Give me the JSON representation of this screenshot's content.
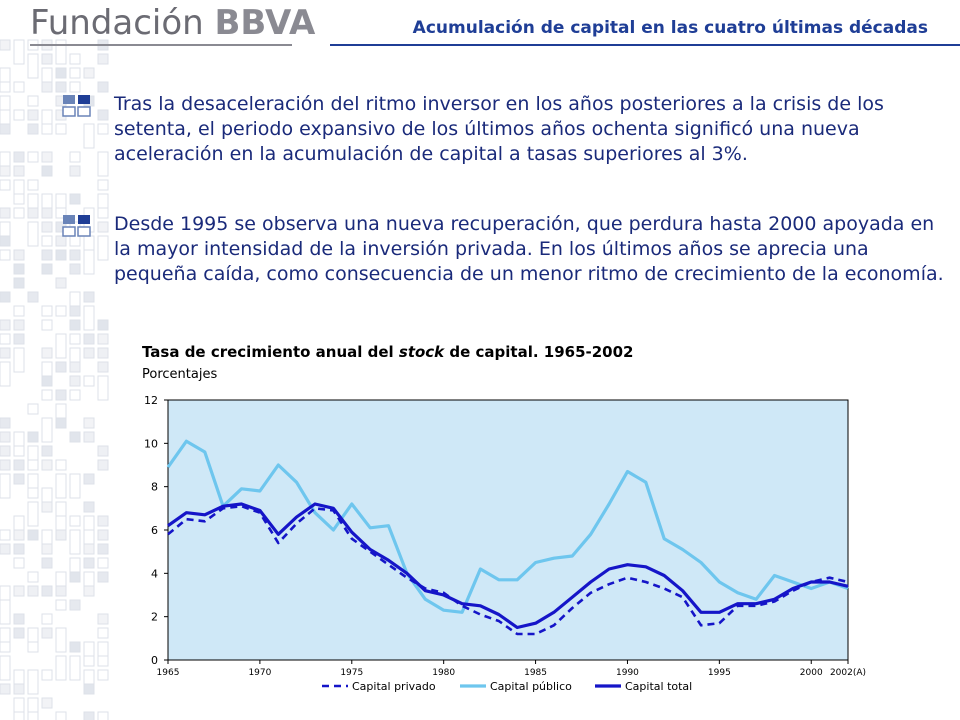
{
  "header": {
    "logo_text": "Fundación",
    "logo_brand": "BBVA",
    "title": "Acumulación de capital en las cuatro últimas décadas"
  },
  "bullets": [
    {
      "icon": "grid-bullet-icon",
      "text": "Tras la desaceleración del ritmo inversor en los años posteriores a la crisis de los setenta, el periodo expansivo de los últimos años ochenta significó una nueva aceleración en la acumulación de capital a tasas superiores al 3%."
    },
    {
      "icon": "grid-bullet-icon",
      "text": "Desde 1995 se observa una nueva recuperación, que perdura hasta 2000 apoyada en la mayor intensidad de la inversión privada. En los últimos años se aprecia una pequeña caída, como consecuencia de un menor ritmo de crecimiento de la economía."
    }
  ],
  "colors": {
    "title_blue": "#1f3e96",
    "text_blue": "#1a2a7a",
    "plot_bg": "#cfe8f7",
    "public_line": "#6ec6ee",
    "total_line": "#1515c8",
    "private_line": "#1515c8"
  },
  "chart_data": {
    "type": "line",
    "title_part1": "Tasa de crecimiento anual del ",
    "title_italic": "stock",
    "title_part2": " de capital. 1965-2002",
    "subtitle": "Porcentajes",
    "ylim": [
      0,
      12
    ],
    "yticks": [
      "0",
      "2",
      "4",
      "6",
      "8",
      "10",
      "12"
    ],
    "xlim": [
      1965,
      2002
    ],
    "xticks": [
      {
        "year": 1965,
        "label": "1965"
      },
      {
        "year": 1970,
        "label": "1970"
      },
      {
        "year": 1975,
        "label": "1975"
      },
      {
        "year": 1980,
        "label": "1980"
      },
      {
        "year": 1985,
        "label": "1985"
      },
      {
        "year": 1990,
        "label": "1990"
      },
      {
        "year": 1995,
        "label": "1995"
      },
      {
        "year": 2000,
        "label": "2000"
      },
      {
        "year": 2002,
        "label": "2002(A)"
      }
    ],
    "x": [
      1965,
      1966,
      1967,
      1968,
      1969,
      1970,
      1971,
      1972,
      1973,
      1974,
      1975,
      1976,
      1977,
      1978,
      1979,
      1980,
      1981,
      1982,
      1983,
      1984,
      1985,
      1986,
      1987,
      1988,
      1989,
      1990,
      1991,
      1992,
      1993,
      1994,
      1995,
      1996,
      1997,
      1998,
      1999,
      2000,
      2001,
      2002
    ],
    "series": [
      {
        "name": "Capital privado",
        "style": "dashed",
        "values": [
          5.8,
          6.5,
          6.4,
          7.0,
          7.1,
          6.8,
          5.4,
          6.3,
          7.0,
          6.9,
          5.6,
          5.0,
          4.4,
          3.8,
          3.3,
          3.1,
          2.5,
          2.1,
          1.8,
          1.2,
          1.2,
          1.6,
          2.4,
          3.1,
          3.5,
          3.8,
          3.6,
          3.3,
          2.9,
          1.6,
          1.7,
          2.5,
          2.5,
          2.7,
          3.2,
          3.6,
          3.8,
          3.6
        ]
      },
      {
        "name": "Capital público",
        "style": "light",
        "values": [
          8.9,
          10.1,
          9.6,
          7.1,
          7.9,
          7.8,
          9.0,
          8.2,
          6.8,
          6.0,
          7.2,
          6.1,
          6.2,
          4.0,
          2.8,
          2.3,
          2.2,
          4.2,
          3.7,
          3.7,
          4.5,
          4.7,
          4.8,
          5.8,
          7.2,
          8.7,
          8.2,
          5.6,
          5.1,
          4.5,
          3.6,
          3.1,
          2.8,
          3.9,
          3.6,
          3.3,
          3.6,
          3.3
        ]
      },
      {
        "name": "Capital total",
        "style": "solid",
        "values": [
          6.2,
          6.8,
          6.7,
          7.1,
          7.2,
          6.9,
          5.8,
          6.6,
          7.2,
          7.0,
          5.9,
          5.1,
          4.6,
          4.0,
          3.2,
          3.0,
          2.6,
          2.5,
          2.1,
          1.5,
          1.7,
          2.2,
          2.9,
          3.6,
          4.2,
          4.4,
          4.3,
          3.9,
          3.2,
          2.2,
          2.2,
          2.6,
          2.6,
          2.8,
          3.3,
          3.6,
          3.6,
          3.4
        ]
      }
    ],
    "legend_position": "bottom"
  }
}
